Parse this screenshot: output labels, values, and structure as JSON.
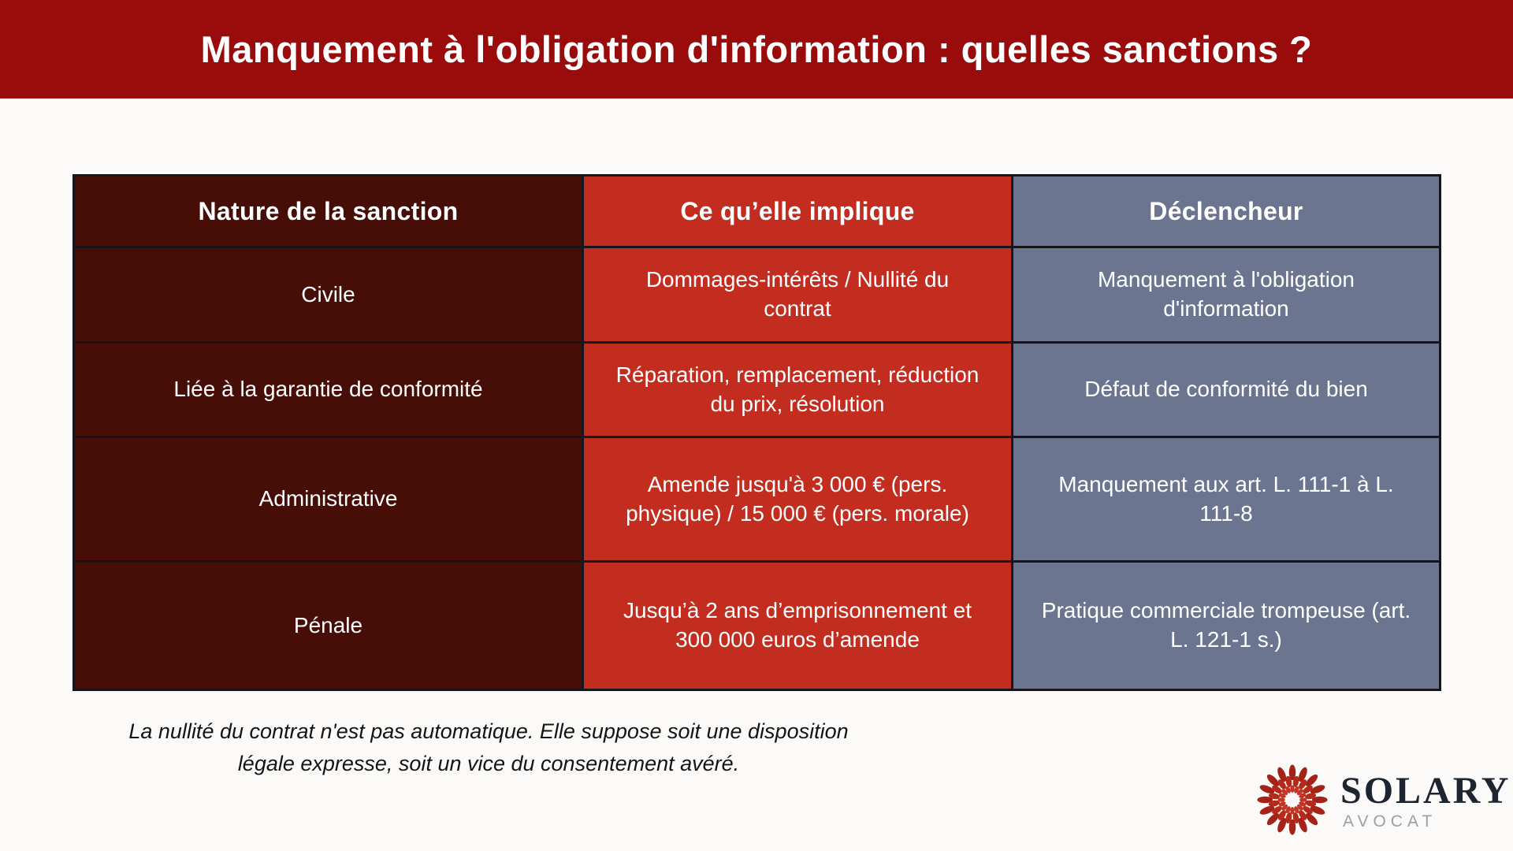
{
  "banner": {
    "title": "Manquement à l'obligation d'information : quelles sanctions ?"
  },
  "table": {
    "columns": [
      {
        "label": "Nature de la sanction"
      },
      {
        "label": "Ce qu’elle implique"
      },
      {
        "label": "Déclencheur"
      }
    ],
    "rows": [
      {
        "nature": "Civile",
        "implique": "Dommages-intérêts / Nullité du contrat",
        "declencheur": "Manquement à l'obligation d'information"
      },
      {
        "nature": "Liée à la garantie de conformité",
        "implique": "Réparation, remplacement, réduction du prix, résolution",
        "declencheur": "Défaut de conformité du bien"
      },
      {
        "nature": "Administrative",
        "implique": "Amende jusqu'à 3 000 € (pers. physique) / 15 000 € (pers. morale)",
        "declencheur": "Manquement aux art. L. 111-1 à L. 111-8"
      },
      {
        "nature": "Pénale",
        "implique": "Jusqu’à 2 ans d’emprisonnement et 300 000 euros d’amende",
        "declencheur": "Pratique commerciale trompeuse (art. L. 121-1 s.)"
      }
    ]
  },
  "footnote": {
    "line1": "La nullité du contrat n'est pas automatique. Elle suppose soit une disposition",
    "line2": "légale expresse, soit un vice du consentement avéré."
  },
  "logo": {
    "name": "SOLARY",
    "subtitle": "AVOCAT",
    "icon": "starburst-icon"
  },
  "colors": {
    "page_bg": "#FCFAF8",
    "banner_bg": "#9A0B0B",
    "col_nature_bg": "#460E07",
    "col_implique_bg": "#C22D20",
    "col_declencheur_bg": "#6B7590",
    "table_border": "#15151B",
    "logo_navy": "#1D2531",
    "logo_red": "#B2281B"
  }
}
